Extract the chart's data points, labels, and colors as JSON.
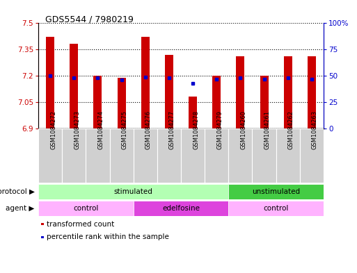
{
  "title": "GDS5544 / 7980219",
  "samples": [
    "GSM1084272",
    "GSM1084273",
    "GSM1084274",
    "GSM1084275",
    "GSM1084276",
    "GSM1084277",
    "GSM1084278",
    "GSM1084279",
    "GSM1084260",
    "GSM1084261",
    "GSM1084262",
    "GSM1084263"
  ],
  "red_values": [
    7.42,
    7.38,
    7.2,
    7.19,
    7.42,
    7.32,
    7.08,
    7.2,
    7.31,
    7.2,
    7.31,
    7.31
  ],
  "blue_values": [
    50,
    48,
    48,
    46,
    49,
    48,
    43,
    47,
    48,
    47,
    48,
    47
  ],
  "ylim_left": [
    6.9,
    7.5
  ],
  "ylim_right": [
    0,
    100
  ],
  "yticks_left": [
    6.9,
    7.05,
    7.2,
    7.35,
    7.5
  ],
  "yticks_right": [
    0,
    25,
    50,
    75,
    100
  ],
  "ytick_labels_left": [
    "6.9",
    "7.05",
    "7.2",
    "7.35",
    "7.5"
  ],
  "ytick_labels_right": [
    "0",
    "25",
    "50",
    "75",
    "100%"
  ],
  "bar_color": "#cc0000",
  "dot_color": "#0000cc",
  "protocol_groups": [
    {
      "label": "stimulated",
      "start": 0,
      "end": 7,
      "color": "#b3ffb3"
    },
    {
      "label": "unstimulated",
      "start": 8,
      "end": 11,
      "color": "#44cc44"
    }
  ],
  "agent_groups": [
    {
      "label": "control",
      "start": 0,
      "end": 3,
      "color": "#ffb3ff"
    },
    {
      "label": "edelfosine",
      "start": 4,
      "end": 7,
      "color": "#dd44dd"
    },
    {
      "label": "control",
      "start": 8,
      "end": 11,
      "color": "#ffb3ff"
    }
  ],
  "legend_items": [
    {
      "color": "#cc0000",
      "label": "transformed count"
    },
    {
      "color": "#0000cc",
      "label": "percentile rank within the sample"
    }
  ],
  "bar_width": 0.35,
  "base_value": 6.9
}
